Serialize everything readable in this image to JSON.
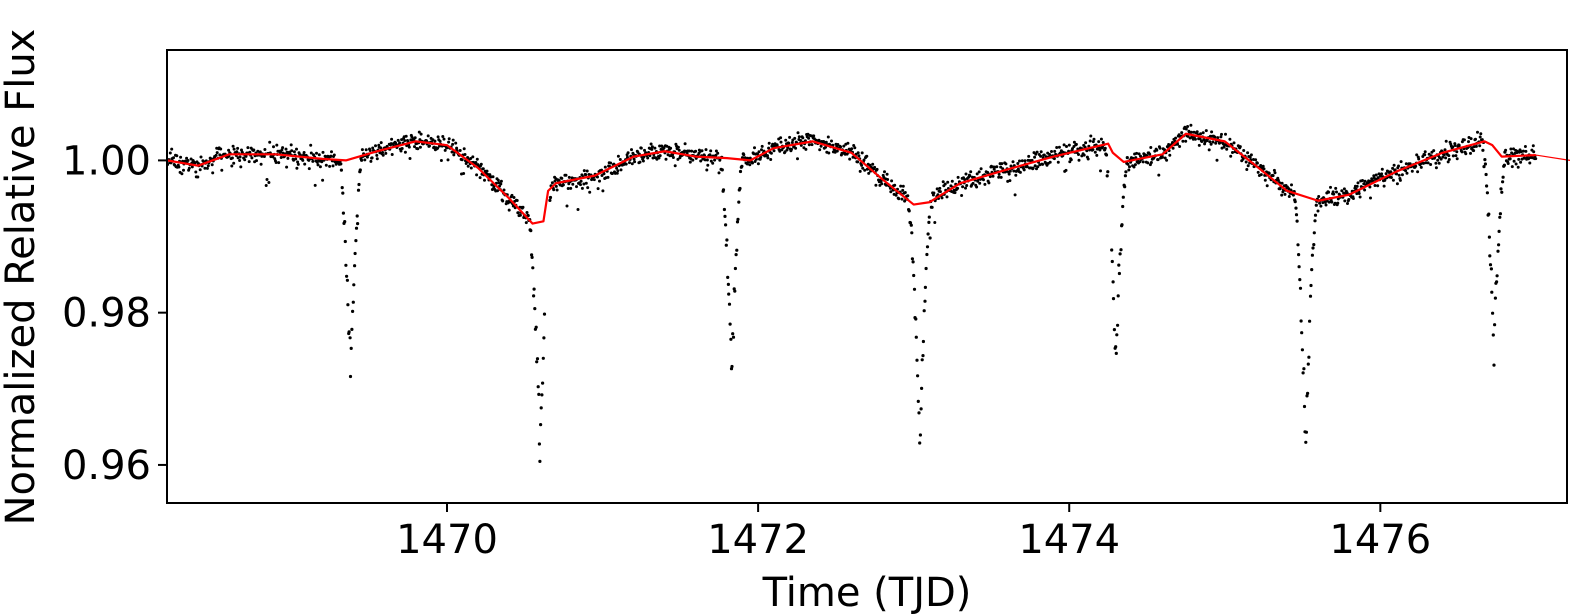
{
  "chart_data": {
    "type": "scatter",
    "title": "",
    "xlabel": "Time (TJD)",
    "ylabel": "Normalized Relative Flux",
    "xlim": [
      1468.2,
      1477.2
    ],
    "ylim": [
      0.955,
      1.0145
    ],
    "x_ticks": [
      1470,
      1472,
      1474,
      1476
    ],
    "x_tick_labels": [
      "1470",
      "1472",
      "1474",
      "1476"
    ],
    "y_ticks": [
      0.96,
      0.98,
      1.0
    ],
    "y_tick_labels": [
      "0.96",
      "0.98",
      "1.00"
    ],
    "grid": false,
    "legend": "none",
    "colors": {
      "data": "#000000",
      "model": "#ff0000",
      "frame": "#000000"
    },
    "series": [
      {
        "style": "points",
        "color": "#000000",
        "data_range": [
          1468.2,
          1477.0
        ],
        "transits": [
          {
            "t": 1469.38,
            "depth": 0.0285
          },
          {
            "t": 1470.6,
            "depth": 0.031
          },
          {
            "t": 1471.83,
            "depth": 0.0285
          },
          {
            "t": 1473.04,
            "depth": 0.032
          },
          {
            "t": 1474.3,
            "depth": 0.027
          },
          {
            "t": 1475.52,
            "depth": 0.0335
          },
          {
            "t": 1476.73,
            "depth": 0.027
          }
        ]
      },
      {
        "style": "line",
        "color": "#ff0000",
        "x": [
          1468.2,
          1468.4,
          1468.6,
          1468.9,
          1469.2,
          1469.35,
          1469.55,
          1469.8,
          1470.0,
          1470.2,
          1470.4,
          1470.55,
          1470.62,
          1470.65,
          1470.7,
          1470.95,
          1471.2,
          1471.4,
          1471.6,
          1471.8,
          1471.95,
          1472.1,
          1472.35,
          1472.6,
          1472.8,
          1473.0,
          1473.1,
          1473.3,
          1473.6,
          1473.9,
          1474.25,
          1474.28,
          1474.35,
          1474.6,
          1474.75,
          1475.0,
          1475.2,
          1475.4,
          1475.6,
          1475.8,
          1476.1,
          1476.4,
          1476.67,
          1476.72,
          1476.78,
          1477.0,
          1477.2
        ],
        "y": [
          1.0,
          0.9993,
          1.0008,
          1.0008,
          1.0002,
          1.0,
          1.0012,
          1.0025,
          1.002,
          0.999,
          0.995,
          0.9917,
          0.992,
          0.996,
          0.997,
          0.998,
          1.0005,
          1.0012,
          1.0005,
          1.0003,
          1.0,
          1.0016,
          1.0025,
          1.001,
          0.9975,
          0.9942,
          0.9945,
          0.997,
          0.9988,
          1.0005,
          1.0022,
          1.001,
          0.9998,
          1.0008,
          1.0035,
          1.0025,
          0.9993,
          0.996,
          0.9947,
          0.9955,
          0.9985,
          1.001,
          1.0025,
          1.002,
          1.0005,
          1.0007,
          1.0
        ]
      }
    ]
  }
}
